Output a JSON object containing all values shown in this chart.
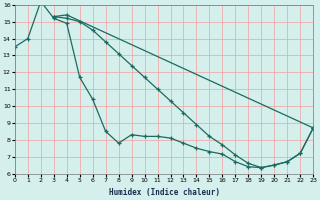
{
  "xlabel": "Humidex (Indice chaleur)",
  "bg_color": "#d4efec",
  "line_color": "#1a6b60",
  "grid_color": "#f0a0a0",
  "xlim": [
    0,
    23
  ],
  "ylim": [
    6,
    16
  ],
  "xticks": [
    0,
    1,
    2,
    3,
    4,
    5,
    6,
    7,
    8,
    9,
    10,
    11,
    12,
    13,
    14,
    15,
    16,
    17,
    18,
    19,
    20,
    21,
    22,
    23
  ],
  "yticks": [
    6,
    7,
    8,
    9,
    10,
    11,
    12,
    13,
    14,
    15,
    16
  ],
  "line1_x": [
    0,
    1,
    2,
    3,
    4,
    5,
    6,
    7,
    8,
    9,
    10,
    11,
    12,
    13,
    14,
    15,
    16,
    17,
    18,
    19,
    20,
    21,
    22,
    23
  ],
  "line1_y": [
    13.5,
    14.0,
    16.2,
    15.2,
    14.9,
    11.7,
    10.4,
    8.5,
    7.8,
    8.3,
    8.2,
    8.2,
    8.1,
    7.8,
    7.5,
    7.3,
    7.15,
    6.7,
    6.4,
    6.35,
    6.5,
    6.7,
    7.2,
    8.7
  ],
  "line2_x": [
    3,
    4,
    23
  ],
  "line2_y": [
    15.3,
    15.4,
    8.7
  ],
  "line3_x": [
    3,
    4,
    5,
    6,
    7,
    8,
    9,
    10,
    11,
    12,
    13,
    14,
    15,
    16,
    17,
    18,
    19,
    20,
    21,
    22,
    23
  ],
  "line3_y": [
    15.3,
    15.2,
    15.0,
    14.5,
    13.8,
    13.1,
    12.4,
    11.7,
    11.0,
    10.3,
    9.6,
    8.9,
    8.2,
    7.7,
    7.1,
    6.6,
    6.35,
    6.5,
    6.7,
    7.2,
    8.7
  ]
}
